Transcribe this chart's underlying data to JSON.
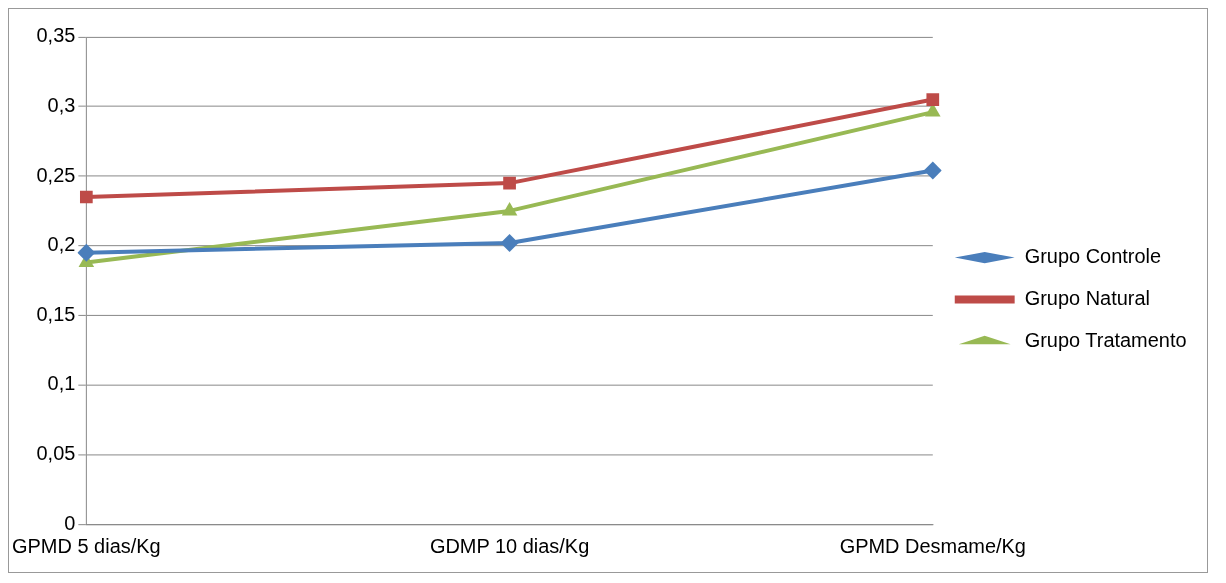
{
  "chart_data": {
    "type": "line",
    "categories": [
      "GPMD 5 dias/Kg",
      "GDMP 10 dias/Kg",
      "GPMD Desmame/Kg"
    ],
    "series": [
      {
        "name": "Grupo Controle",
        "color": "#4a7ebb",
        "marker": "diamond",
        "values": [
          0.195,
          0.202,
          0.254
        ]
      },
      {
        "name": "Grupo Natural",
        "color": "#be4b48",
        "marker": "square",
        "values": [
          0.235,
          0.245,
          0.305
        ]
      },
      {
        "name": "Grupo Tratamento",
        "color": "#98b954",
        "marker": "triangle",
        "values": [
          0.188,
          0.225,
          0.296
        ]
      }
    ],
    "ylim": [
      0,
      0.35
    ],
    "yticks": [
      0,
      {
        "value": 0.05,
        "label": "0,05"
      },
      {
        "value": 0.1,
        "label": "0,1"
      },
      {
        "value": 0.15,
        "label": "0,15"
      },
      {
        "value": 0.2,
        "label": "0,2"
      },
      {
        "value": 0.25,
        "label": "0,25"
      },
      {
        "value": 0.3,
        "label": "0,3"
      },
      {
        "value": 0.35,
        "label": "0,35"
      }
    ],
    "grid": "y",
    "legend": "right"
  }
}
